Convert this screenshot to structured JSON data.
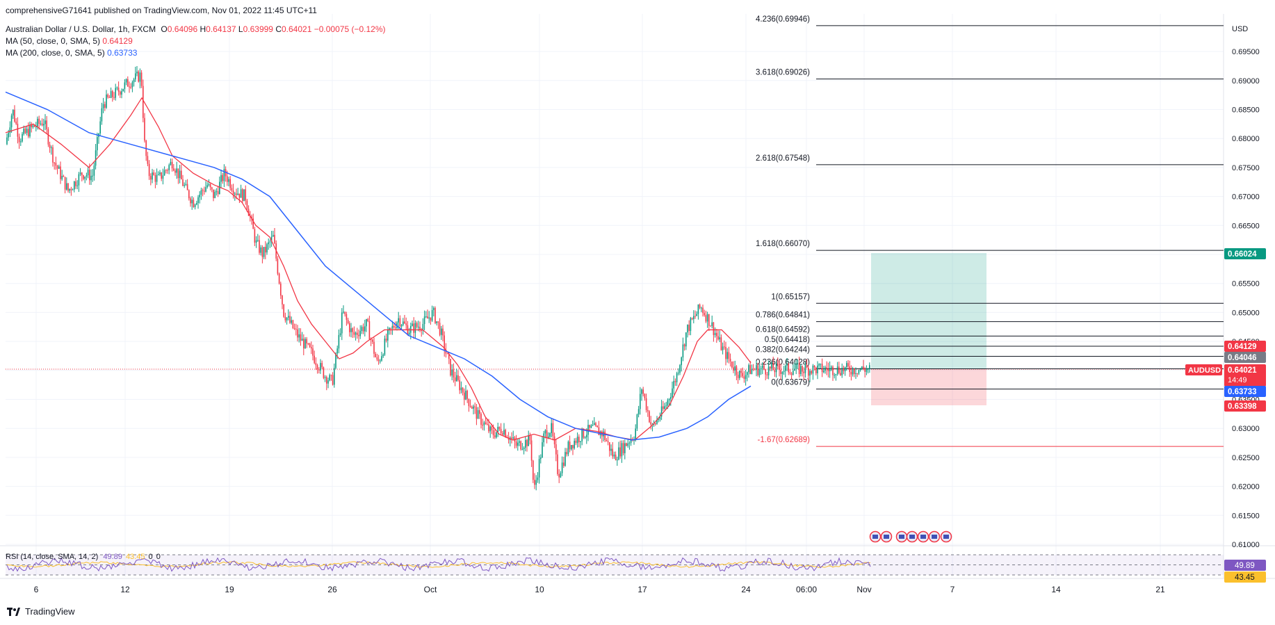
{
  "header": {
    "publish_line": "comprehensiveG71641 published on TradingView.com, Nov 01, 2022 11:45 UTC+11",
    "symbol_line": {
      "title": "Australian Dollar / U.S. Dollar, 1h, FXCM",
      "o_label": "O",
      "o": "0.64096",
      "h_label": "H",
      "h": "0.64137",
      "l_label": "L",
      "l": "0.63999",
      "c_label": "C",
      "c": "0.64021",
      "change": "−0.00075 (−0.12%)"
    },
    "ma50": {
      "label": "MA (50, close, 0, SMA, 5)",
      "value": "0.64129",
      "color": "#f23645"
    },
    "ma200": {
      "label": "MA (200, close, 0, SMA, 5)",
      "value": "0.63733",
      "color": "#2962ff"
    },
    "rsi_label": "RSI (14, close, SMA, 14, 2)",
    "rsi_vals": [
      "49.89",
      "43.45",
      "0",
      "0"
    ]
  },
  "footer": {
    "brand": "TradingView"
  },
  "chart_data": {
    "type": "candlestick",
    "symbol": "AUDUSD",
    "currency": "USD",
    "ylim": [
      0.6085,
      0.6995
    ],
    "y_ticks": [
      "0.69500",
      "0.69000",
      "0.68500",
      "0.68000",
      "0.67500",
      "0.67000",
      "0.66500",
      "0.66000",
      "0.65500",
      "0.65000",
      "0.64500",
      "0.64000",
      "0.63500",
      "0.63000",
      "0.62500",
      "0.62000",
      "0.61500",
      "0.61000"
    ],
    "x_ticks": [
      "6",
      "12",
      "19",
      "26",
      "Oct",
      "10",
      "17",
      "24",
      "06:00",
      "Nov",
      "7",
      "14",
      "21"
    ],
    "price_path": [
      [
        0,
        0.679
      ],
      [
        10,
        0.685
      ],
      [
        20,
        0.68
      ],
      [
        40,
        0.682
      ],
      [
        55,
        0.683
      ],
      [
        70,
        0.676
      ],
      [
        90,
        0.671
      ],
      [
        110,
        0.674
      ],
      [
        125,
        0.6735
      ],
      [
        140,
        0.686
      ],
      [
        160,
        0.688
      ],
      [
        175,
        0.6895
      ],
      [
        195,
        0.691
      ],
      [
        200,
        0.679
      ],
      [
        205,
        0.674
      ],
      [
        220,
        0.673
      ],
      [
        240,
        0.676
      ],
      [
        260,
        0.671
      ],
      [
        270,
        0.669
      ],
      [
        290,
        0.672
      ],
      [
        300,
        0.67
      ],
      [
        315,
        0.674
      ],
      [
        330,
        0.671
      ],
      [
        345,
        0.67
      ],
      [
        360,
        0.662
      ],
      [
        370,
        0.66
      ],
      [
        385,
        0.663
      ],
      [
        400,
        0.65
      ],
      [
        420,
        0.646
      ],
      [
        440,
        0.643
      ],
      [
        460,
        0.639
      ],
      [
        470,
        0.638
      ],
      [
        485,
        0.65
      ],
      [
        500,
        0.646
      ],
      [
        520,
        0.648
      ],
      [
        535,
        0.641
      ],
      [
        550,
        0.646
      ],
      [
        565,
        0.649
      ],
      [
        580,
        0.647
      ],
      [
        600,
        0.648
      ],
      [
        615,
        0.65
      ],
      [
        625,
        0.647
      ],
      [
        640,
        0.64
      ],
      [
        660,
        0.636
      ],
      [
        680,
        0.632
      ],
      [
        700,
        0.629
      ],
      [
        715,
        0.63
      ],
      [
        735,
        0.627
      ],
      [
        755,
        0.628
      ],
      [
        760,
        0.619
      ],
      [
        775,
        0.629
      ],
      [
        785,
        0.63
      ],
      [
        795,
        0.622
      ],
      [
        810,
        0.627
      ],
      [
        830,
        0.629
      ],
      [
        845,
        0.63
      ],
      [
        860,
        0.629
      ],
      [
        875,
        0.625
      ],
      [
        890,
        0.627
      ],
      [
        905,
        0.629
      ],
      [
        915,
        0.637
      ],
      [
        930,
        0.63
      ],
      [
        950,
        0.634
      ],
      [
        965,
        0.639
      ],
      [
        980,
        0.647
      ],
      [
        1000,
        0.651
      ],
      [
        1015,
        0.648
      ],
      [
        1030,
        0.644
      ],
      [
        1045,
        0.641
      ],
      [
        1058,
        0.639
      ],
      [
        1072,
        0.6402
      ]
    ],
    "ma50_path": [
      [
        0,
        0.681
      ],
      [
        40,
        0.6825
      ],
      [
        80,
        0.679
      ],
      [
        120,
        0.675
      ],
      [
        150,
        0.679
      ],
      [
        180,
        0.684
      ],
      [
        196,
        0.687
      ],
      [
        220,
        0.682
      ],
      [
        240,
        0.677
      ],
      [
        270,
        0.674
      ],
      [
        300,
        0.672
      ],
      [
        320,
        0.671
      ],
      [
        340,
        0.669
      ],
      [
        360,
        0.665
      ],
      [
        380,
        0.663
      ],
      [
        400,
        0.658
      ],
      [
        420,
        0.652
      ],
      [
        440,
        0.648
      ],
      [
        460,
        0.645
      ],
      [
        480,
        0.642
      ],
      [
        500,
        0.643
      ],
      [
        520,
        0.645
      ],
      [
        545,
        0.647
      ],
      [
        570,
        0.647
      ],
      [
        600,
        0.647
      ],
      [
        630,
        0.644
      ],
      [
        650,
        0.641
      ],
      [
        670,
        0.637
      ],
      [
        690,
        0.632
      ],
      [
        710,
        0.629
      ],
      [
        730,
        0.628
      ],
      [
        760,
        0.629
      ],
      [
        790,
        0.628
      ],
      [
        820,
        0.63
      ],
      [
        850,
        0.6295
      ],
      [
        880,
        0.6285
      ],
      [
        905,
        0.628
      ],
      [
        930,
        0.6305
      ],
      [
        955,
        0.634
      ],
      [
        975,
        0.639
      ],
      [
        995,
        0.645
      ],
      [
        1010,
        0.647
      ],
      [
        1030,
        0.647
      ],
      [
        1055,
        0.644
      ],
      [
        1072,
        0.6413
      ]
    ],
    "ma200_path": [
      [
        0,
        0.688
      ],
      [
        60,
        0.685
      ],
      [
        120,
        0.681
      ],
      [
        180,
        0.679
      ],
      [
        240,
        0.677
      ],
      [
        300,
        0.675
      ],
      [
        340,
        0.673
      ],
      [
        380,
        0.67
      ],
      [
        420,
        0.664
      ],
      [
        460,
        0.658
      ],
      [
        500,
        0.654
      ],
      [
        540,
        0.65
      ],
      [
        580,
        0.646
      ],
      [
        620,
        0.644
      ],
      [
        660,
        0.642
      ],
      [
        700,
        0.639
      ],
      [
        740,
        0.635
      ],
      [
        780,
        0.632
      ],
      [
        820,
        0.63
      ],
      [
        860,
        0.629
      ],
      [
        900,
        0.628
      ],
      [
        940,
        0.6285
      ],
      [
        980,
        0.63
      ],
      [
        1010,
        0.632
      ],
      [
        1040,
        0.635
      ],
      [
        1072,
        0.6373
      ]
    ],
    "fib_levels": [
      {
        "label": "4.236(0.69946)",
        "value": 0.69946
      },
      {
        "label": "3.618(0.69026)",
        "value": 0.69026
      },
      {
        "label": "2.618(0.67548)",
        "value": 0.67548
      },
      {
        "label": "1.618(0.66070)",
        "value": 0.6607
      },
      {
        "label": "1(0.65157)",
        "value": 0.65157
      },
      {
        "label": "0.786(0.64841)",
        "value": 0.64841
      },
      {
        "label": "0.618(0.64592)",
        "value": 0.64592
      },
      {
        "label": "0.5(0.64418)",
        "value": 0.64418
      },
      {
        "label": "0.382(0.64244)",
        "value": 0.64244
      },
      {
        "label": "0.236(0.64028)",
        "value": 0.64028
      },
      {
        "label": "0(0.63679)",
        "value": 0.63679
      },
      {
        "label": "-1.67(0.62689)",
        "value": 0.62689,
        "color": "#f23645"
      }
    ],
    "position": {
      "entry": 0.64021,
      "target": 0.66024,
      "stop": 0.63398
    },
    "price_labels": [
      {
        "text": "0.66024",
        "value": 0.66024,
        "color": "#089981"
      },
      {
        "text": "0.64129",
        "value": 0.64129,
        "color": "#f23645"
      },
      {
        "text": "0.64046",
        "value": 0.64046,
        "color": "#787b86"
      },
      {
        "text": "0.64021",
        "value": 0.64021,
        "color": "#f23645",
        "sub": "14:49",
        "tag": "AUDUSD"
      },
      {
        "text": "0.63733",
        "value": 0.63733,
        "color": "#2962ff"
      },
      {
        "text": "0.63398",
        "value": 0.63398,
        "color": "#f23645"
      }
    ],
    "rsi": {
      "value": "49.89",
      "ma_value": "43.45",
      "upper": 70,
      "lower": 30
    }
  }
}
